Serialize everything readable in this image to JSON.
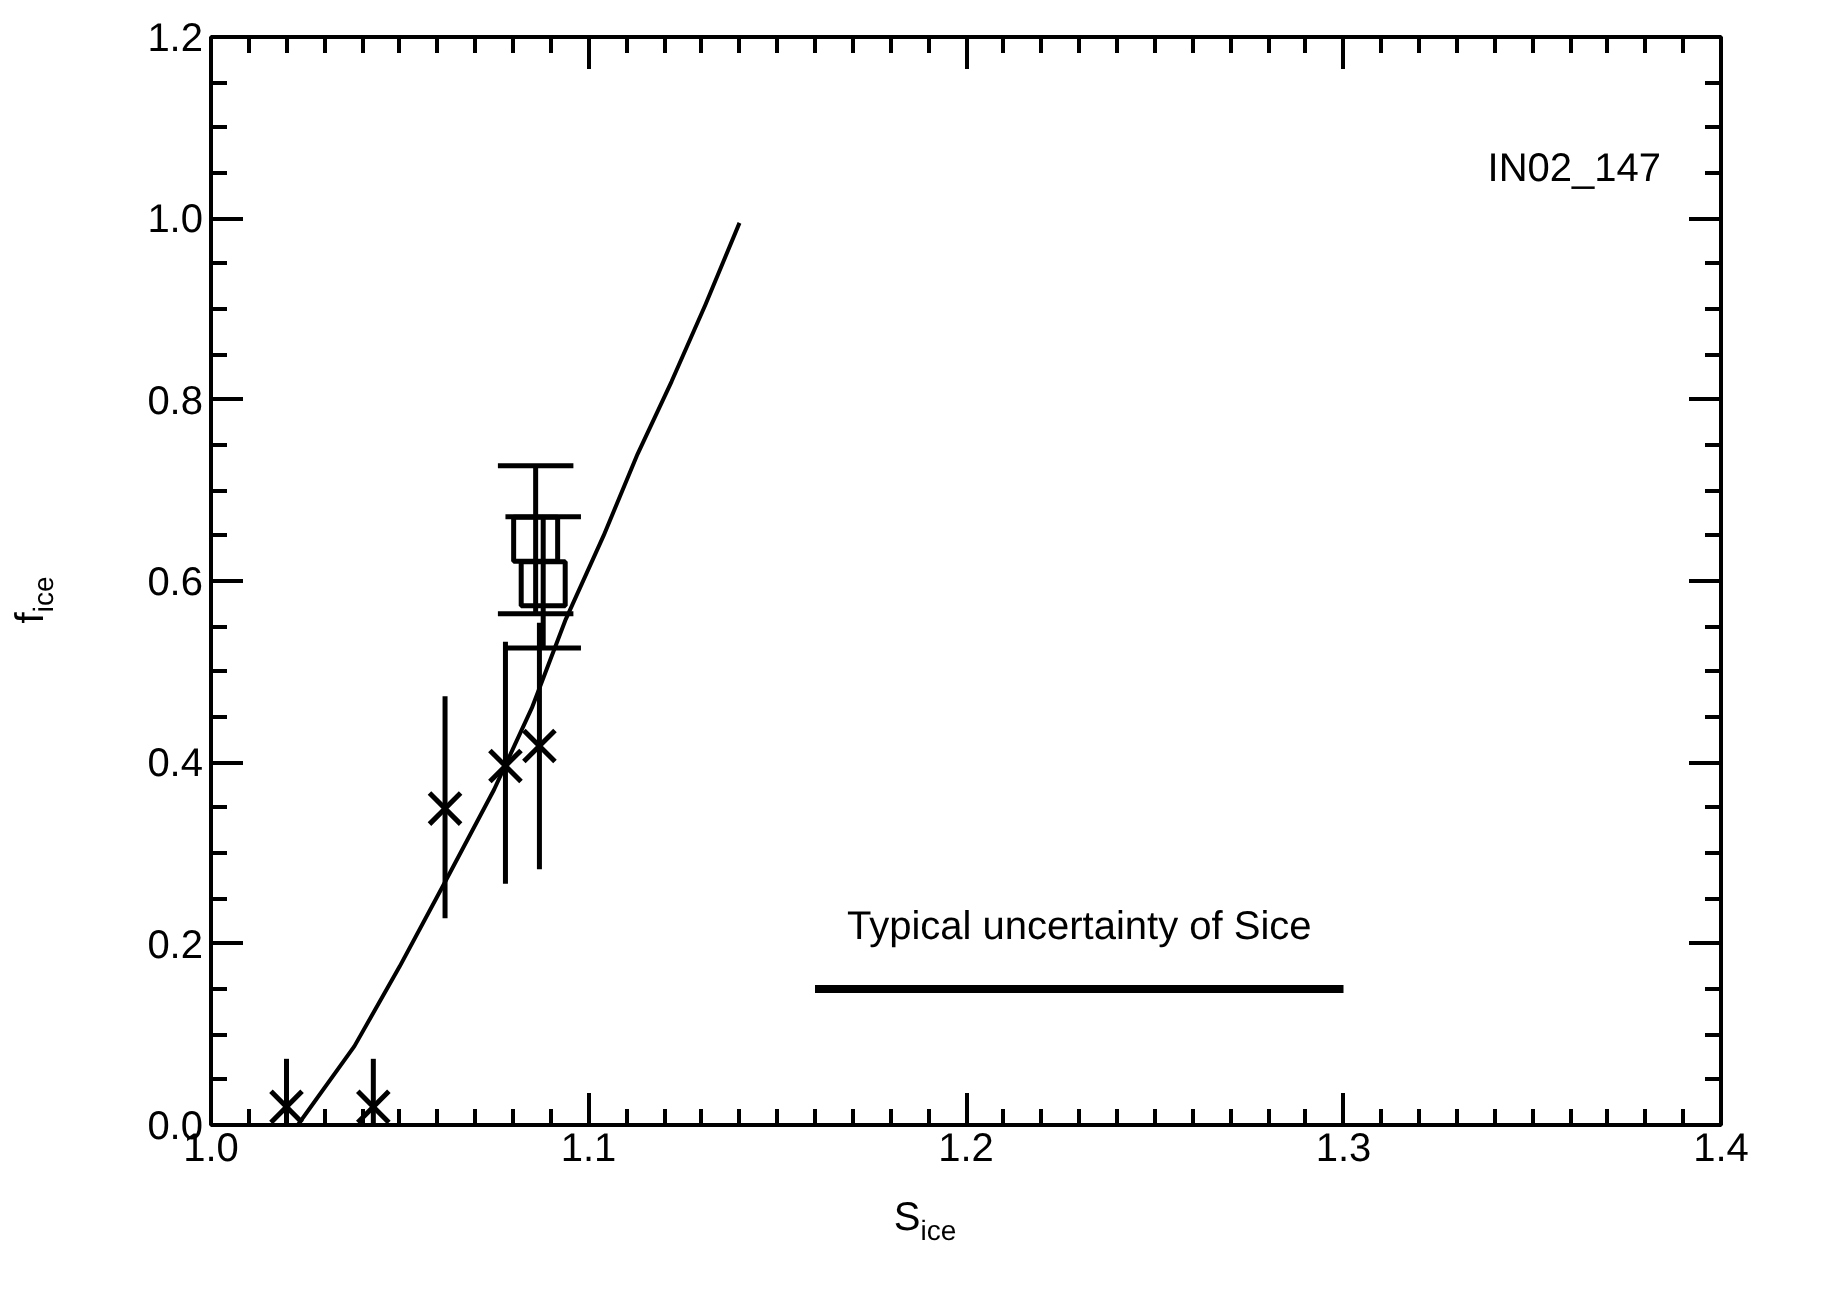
{
  "chart_data": {
    "type": "scatter",
    "xlabel": "S$_{ice}$",
    "ylabel": "f$_{ice}$",
    "xlim": [
      1.0,
      1.4
    ],
    "ylim": [
      0.0,
      1.2
    ],
    "xticks": [
      {
        "value": 1.0,
        "label": "1.0"
      },
      1.1,
      1.2,
      1.3,
      1.4
    ],
    "yticks": [
      {
        "value": 0.0,
        "label": "0.0"
      },
      0.2,
      0.4,
      0.6,
      0.8,
      {
        "value": 1.0,
        "label": "1.0"
      },
      1.2
    ],
    "grid": false,
    "series": [
      {
        "marker": "cross",
        "color": "#000000",
        "x": [
          1.02,
          1.043,
          1.062,
          1.078,
          1.087
        ],
        "values": [
          0.02,
          0.02,
          0.349,
          0.396,
          0.418
        ],
        "errors": [
          [
            0.0,
            0.073
          ],
          [
            0.0,
            0.073
          ],
          [
            0.228,
            0.473
          ],
          [
            0.266,
            0.533
          ],
          [
            0.282,
            0.554
          ]
        ]
      },
      {
        "marker": "square",
        "color": "#000000",
        "x": [
          1.086,
          1.088
        ],
        "values": [
          0.646,
          0.597
        ],
        "errors": [
          [
            0.564,
            0.727
          ],
          [
            0.526,
            0.671
          ]
        ]
      },
      {
        "type": "line",
        "color": "#000000",
        "x": [
          1.023,
          1.038,
          1.05,
          1.062,
          1.075,
          1.085,
          1.094,
          1.104,
          1.113,
          1.122,
          1.131,
          1.14
        ],
        "values": [
          0.0,
          0.087,
          0.175,
          0.268,
          0.37,
          0.46,
          0.558,
          0.65,
          0.74,
          0.82,
          0.905,
          0.995
        ]
      },
      {
        "type": "line",
        "color": "#000000",
        "x": [
          1.16,
          1.3
        ],
        "values": [
          0.15,
          0.15
        ]
      }
    ],
    "annotations": [
      "IN02_147",
      {
        "text": "Typical uncertainty of Sice",
        "x": 1.23,
        "y": 0.15
      }
    ]
  }
}
